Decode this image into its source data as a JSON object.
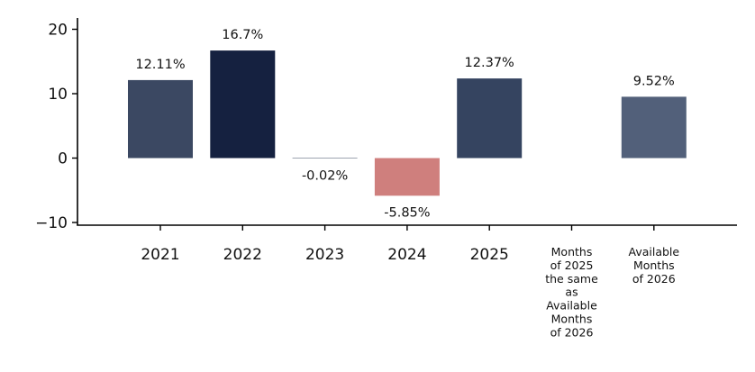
{
  "chart_data": {
    "type": "bar",
    "title": "",
    "xlabel": "",
    "ylabel": "",
    "ylim": [
      -10.5,
      21.5
    ],
    "yticks": [
      -10,
      0,
      10,
      20
    ],
    "ytick_labels": [
      "−10",
      "0",
      "10",
      "20"
    ],
    "grid": false,
    "categories": [
      "2021",
      "2022",
      "2023",
      "2024",
      "2025",
      "Months of 2025 the same as Available Months of 2026",
      "Available Months of 2026"
    ],
    "category_lines": [
      [
        "2021"
      ],
      [
        "2022"
      ],
      [
        "2023"
      ],
      [
        "2024"
      ],
      [
        "2025"
      ],
      [
        "Months",
        "of 2025",
        "the same",
        "as",
        "Available",
        "Months",
        "of 2026"
      ],
      [
        "Available",
        "Months",
        "of 2026"
      ]
    ],
    "values": [
      12.11,
      16.7,
      -0.02,
      -5.85,
      12.37,
      null,
      9.52
    ],
    "data_labels": [
      "12.11%",
      "16.7%",
      "-0.02%",
      "-5.85%",
      "12.37%",
      "",
      "9.52%"
    ],
    "colors": [
      "#3b4862",
      "#152140",
      "#3b4862",
      "#cf7f7d",
      "#354460",
      "#52607a",
      "#52607a"
    ]
  }
}
